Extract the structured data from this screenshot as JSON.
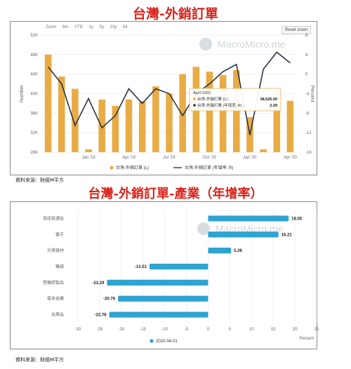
{
  "header1": {
    "title": "台灣-外銷訂單"
  },
  "header2": {
    "title": "台灣-外銷訂單-產業（年增率）"
  },
  "source1": "資料來源：財經M平方",
  "source2": "資料來源：財經M平方",
  "watermark": "MacroMicro.me",
  "zoom": {
    "label": "Zoom",
    "options": [
      "6m",
      "YTD",
      "1y",
      "5y",
      "10y",
      "All"
    ],
    "reset": "Reset zoom"
  },
  "tooltip": {
    "date": "April 2020",
    "line1_label": "台灣-外銷訂單 (L) :",
    "line1_value": "38,526.00",
    "line2_label": "台灣-外銷訂單 (年增率, R) :",
    "line2_value": "2.29"
  },
  "colors": {
    "bar": "#e9ac45",
    "line": "#2b3447",
    "hbar": "#2fa3d1",
    "title": "#d8231b"
  },
  "chart_data": [
    {
      "type": "bar",
      "title": "台灣-外銷訂單",
      "ylabel": "Number",
      "y2label": "Percent",
      "ylim": [
        28000,
        52000
      ],
      "y2lim": [
        -16,
        8
      ],
      "yticks": [
        "52K",
        "48K",
        "44K",
        "40K",
        "36K",
        "32K",
        "28K"
      ],
      "y2ticks": [
        "8",
        "4",
        "0",
        "-4",
        "-8",
        "-12",
        "-16"
      ],
      "xticks": [
        "Jan '19",
        "Apr '19",
        "Jul '19",
        "Oct '19",
        "Jan '20",
        "Apr '20"
      ],
      "categories": [
        "2018-10",
        "2018-11",
        "2018-12",
        "2019-01",
        "2019-02",
        "2019-03",
        "2019-04",
        "2019-05",
        "2019-06",
        "2019-07",
        "2019-08",
        "2019-09",
        "2019-10",
        "2019-11",
        "2019-12",
        "2020-01",
        "2020-02",
        "2020-03",
        "2020-04"
      ],
      "series": [
        {
          "name": "台灣-外銷訂單 (L)",
          "type": "bar",
          "axis": "left",
          "values": [
            48000,
            43500,
            41000,
            28600,
            38800,
            37500,
            38800,
            38500,
            41500,
            40000,
            44000,
            45500,
            44500,
            43800,
            44800,
            35200,
            28600,
            40800,
            38526
          ]
        },
        {
          "name": "台灣-外銷訂單 (年增率, R)",
          "type": "line",
          "axis": "right",
          "values": [
            1.5,
            -2.0,
            -10.5,
            -5.0,
            -11.0,
            -8.5,
            -3.0,
            -6.0,
            -3.0,
            -4.0,
            -8.5,
            -4.0,
            -2.0,
            0.5,
            2.0,
            -12.5,
            1.0,
            4.5,
            2.29
          ]
        }
      ],
      "legend": "bottom"
    },
    {
      "type": "bar",
      "orientation": "horizontal",
      "title": "台灣-外銷訂單-產業（年增率）",
      "xlabel": "Percent",
      "xlim": [
        -30,
        25
      ],
      "xticks": [
        -30,
        -25,
        -20,
        -15,
        -10,
        -5,
        0,
        5,
        10,
        15,
        20,
        25
      ],
      "categories": [
        "資訊與通信",
        "電子",
        "光學器材",
        "機械",
        "塑橡膠製品",
        "基本金屬",
        "化學品"
      ],
      "series": [
        {
          "name": "2020-04-01",
          "values": [
            18.55,
            16.21,
            5.28,
            -13.51,
            -23.29,
            -20.76,
            -22.78
          ]
        }
      ],
      "labels": [
        "18.55",
        "16.21",
        "5.28",
        "-13.51",
        "-23.29",
        "-20.76",
        "-22.78"
      ],
      "legend": "bottom"
    }
  ]
}
